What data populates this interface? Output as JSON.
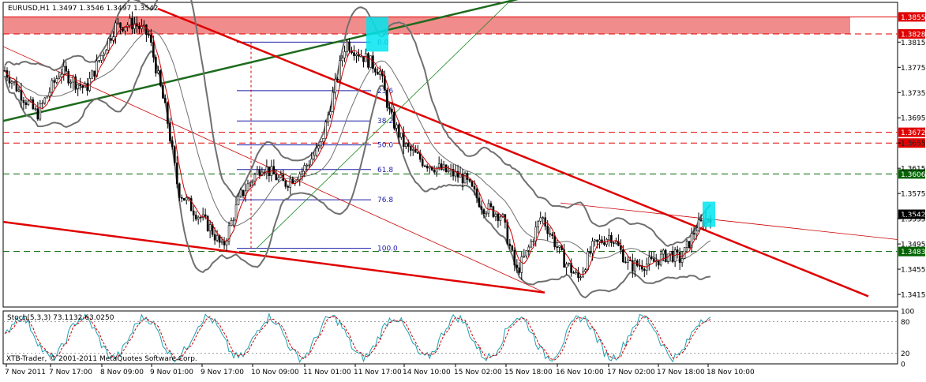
{
  "chart_data": [
    {
      "type": "candlestick",
      "header": "EURUSD,H1  1.3497 1.3546 1.3497 1.3542",
      "ylim": [
        1.3395,
        1.3878
      ],
      "y_ticks": [
        "1.3815",
        "1.3775",
        "1.3735",
        "1.3695",
        "1.3655",
        "1.3615",
        "1.3575",
        "1.3535",
        "1.3495",
        "1.3455",
        "1.3415"
      ],
      "x_labels": [
        "7 Nov 2011",
        "7 Nov 17:00",
        "8 Nov 09:00",
        "9 Nov 01:00",
        "9 Nov 17:00",
        "10 Nov 09:00",
        "11 Nov 01:00",
        "11 Nov 17:00",
        "14 Nov 10:00",
        "15 Nov 02:00",
        "15 Nov 18:00",
        "16 Nov 10:00",
        "17 Nov 02:00",
        "17 Nov 18:00",
        "18 Nov 10:00"
      ],
      "last_price": "1.3542",
      "resistance_zone": {
        "from": 1.3828,
        "to": 1.3855,
        "color": "#f08080"
      },
      "price_levels": [
        {
          "price": 1.3855,
          "label": "1.3855",
          "style": "solid",
          "color": "#e00000"
        },
        {
          "price": 1.3828,
          "label": "1.3828",
          "style": "dashed",
          "color": "#e00000"
        },
        {
          "price": 1.3672,
          "label": "1.3672",
          "style": "dashed",
          "color": "#e00000"
        },
        {
          "price": 1.3655,
          "label": "1.3655",
          "style": "dashed",
          "color": "#e00000"
        },
        {
          "price": 1.3606,
          "label": "1.3606",
          "style": "dashed",
          "color": "#006400"
        },
        {
          "price": 1.3483,
          "label": "1.3483",
          "style": "dashed",
          "color": "#006400"
        }
      ],
      "fibonacci": {
        "high": 1.3815,
        "low": 1.3488,
        "color": "#1a1aa6",
        "levels": [
          {
            "label": "0.0",
            "price": 1.3815
          },
          {
            "label": "23.6",
            "price": 1.3738
          },
          {
            "label": "38.2",
            "price": 1.369
          },
          {
            "label": "50.0",
            "price": 1.3652
          },
          {
            "label": "61.8",
            "price": 1.3613
          },
          {
            "label": "76.8",
            "price": 1.3565
          },
          {
            "label": "100.0",
            "price": 1.3488
          }
        ]
      },
      "colors": {
        "up": "#000000",
        "down": "#000000",
        "ma_fast": "#cc0000",
        "bollinger": "#707070",
        "highlight": "#00e5ee"
      }
    },
    {
      "type": "line",
      "indicator": "Stoch(5,3,3) 73.1132 63.0250",
      "ylim": [
        0,
        100
      ],
      "y_ticks": [
        "100",
        "80",
        "20",
        "0"
      ],
      "main_color": "#20a0b0",
      "signal_color": "#cc0000"
    }
  ],
  "watermark": "XTB-Trader, © 2001-2011 MetaQuotes Software Corp."
}
